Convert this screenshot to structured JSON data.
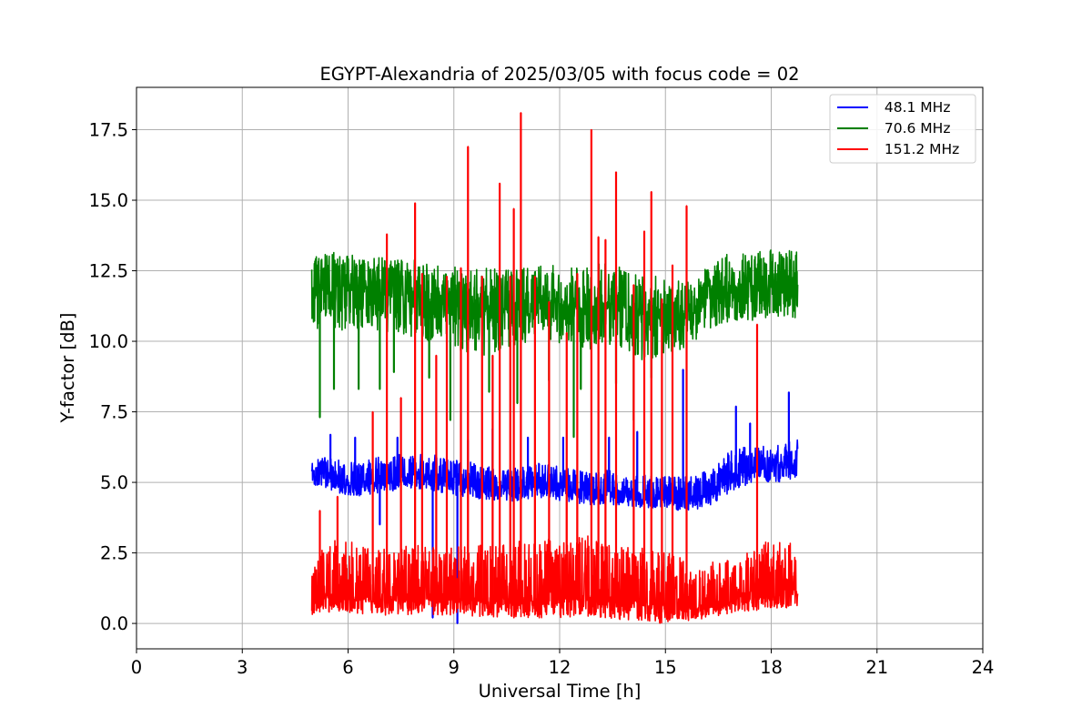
{
  "chart_data": {
    "type": "line",
    "title": "EGYPT-Alexandria of 2025/03/05 with focus code = 02",
    "xlabel": "Universal Time [h]",
    "ylabel": "Y-factor [dB]",
    "xlim": [
      0,
      24
    ],
    "ylim": [
      -0.9,
      19.0
    ],
    "xticks": [
      0,
      3,
      6,
      9,
      12,
      15,
      18,
      21,
      24
    ],
    "xtick_labels": [
      "0",
      "3",
      "6",
      "9",
      "12",
      "15",
      "18",
      "21",
      "24"
    ],
    "yticks": [
      0.0,
      2.5,
      5.0,
      7.5,
      10.0,
      12.5,
      15.0,
      17.5
    ],
    "ytick_labels": [
      "0.0",
      "2.5",
      "5.0",
      "7.5",
      "10.0",
      "12.5",
      "15.0",
      "17.5"
    ],
    "grid": true,
    "legend_position": "top-right",
    "series": [
      {
        "name": "48.1 MHz",
        "label": "  48.1 MHz",
        "color": "#0000ff",
        "x": [
          4.97,
          5.3,
          5.8,
          6.3,
          6.8,
          7.3,
          7.8,
          8.3,
          8.8,
          9.3,
          9.8,
          10.3,
          10.8,
          11.3,
          11.8,
          12.3,
          12.8,
          13.3,
          13.8,
          14.3,
          14.8,
          15.3,
          15.8,
          16.3,
          16.8,
          17.3,
          17.8,
          18.3,
          18.75
        ],
        "base": [
          5.3,
          5.2,
          5.0,
          4.9,
          5.0,
          5.1,
          5.2,
          5.2,
          5.1,
          5.0,
          4.9,
          4.8,
          4.8,
          4.9,
          4.9,
          4.8,
          4.7,
          4.7,
          4.6,
          4.5,
          4.5,
          4.4,
          4.4,
          4.6,
          5.1,
          5.4,
          5.5,
          5.6,
          5.8
        ],
        "upper": [
          5.8,
          5.9,
          5.8,
          5.7,
          5.9,
          6.0,
          6.0,
          6.0,
          5.9,
          5.8,
          5.6,
          5.5,
          5.6,
          5.7,
          5.6,
          5.5,
          5.4,
          5.5,
          5.4,
          5.3,
          5.2,
          5.2,
          5.2,
          5.5,
          6.1,
          6.3,
          6.3,
          6.4,
          6.5
        ],
        "lower": [
          4.9,
          4.8,
          4.6,
          4.5,
          4.6,
          4.7,
          4.8,
          4.7,
          4.6,
          4.5,
          4.4,
          4.3,
          4.3,
          4.4,
          4.4,
          4.3,
          4.2,
          4.2,
          4.2,
          4.1,
          4.1,
          4.0,
          4.0,
          4.2,
          4.6,
          4.9,
          5.0,
          5.0,
          5.2
        ],
        "spikes": [
          [
            5.5,
            6.7
          ],
          [
            6.2,
            6.6
          ],
          [
            6.9,
            3.5
          ],
          [
            7.4,
            6.6
          ],
          [
            8.4,
            0.2
          ],
          [
            9.1,
            0.0
          ],
          [
            9.4,
            6.5
          ],
          [
            10.1,
            6.9
          ],
          [
            11.1,
            6.6
          ],
          [
            12.1,
            6.6
          ],
          [
            13.4,
            6.6
          ],
          [
            14.2,
            6.8
          ],
          [
            15.5,
            9.0
          ],
          [
            17.0,
            7.7
          ],
          [
            17.4,
            7.1
          ],
          [
            18.5,
            8.2
          ]
        ]
      },
      {
        "name": "70.6 MHz",
        "label": "  70.6 MHz",
        "color": "#008000",
        "x": [
          4.97,
          5.3,
          5.8,
          6.3,
          6.8,
          7.3,
          7.8,
          8.3,
          8.8,
          9.3,
          9.8,
          10.3,
          10.8,
          11.3,
          11.8,
          12.3,
          12.8,
          13.3,
          13.8,
          14.3,
          14.8,
          15.3,
          15.8,
          16.3,
          16.8,
          17.3,
          17.8,
          18.3,
          18.75
        ],
        "base": [
          11.7,
          11.8,
          11.9,
          11.9,
          11.8,
          11.7,
          11.6,
          11.5,
          11.3,
          11.3,
          11.2,
          11.1,
          11.2,
          11.4,
          11.4,
          11.3,
          11.1,
          11.3,
          11.2,
          11.0,
          11.0,
          11.0,
          11.0,
          11.6,
          11.9,
          11.9,
          11.9,
          12.0,
          12.0
        ],
        "upper": [
          13.0,
          13.1,
          13.2,
          13.0,
          13.0,
          12.9,
          12.9,
          12.8,
          12.6,
          12.7,
          12.6,
          12.6,
          12.6,
          12.7,
          12.7,
          12.6,
          12.7,
          12.8,
          12.6,
          12.4,
          12.3,
          12.3,
          12.0,
          12.9,
          13.1,
          13.1,
          13.3,
          13.3,
          13.2
        ],
        "lower": [
          10.4,
          10.5,
          10.3,
          10.4,
          10.4,
          10.2,
          10.1,
          10.0,
          9.9,
          9.6,
          9.5,
          9.6,
          9.9,
          10.0,
          9.9,
          10.0,
          9.6,
          9.9,
          9.6,
          9.3,
          9.4,
          9.6,
          10.0,
          10.5,
          10.7,
          10.7,
          10.8,
          10.9,
          10.8
        ],
        "spikes": [
          [
            5.2,
            7.3
          ],
          [
            5.6,
            8.3
          ],
          [
            6.3,
            8.3
          ],
          [
            6.9,
            8.3
          ],
          [
            7.3,
            8.9
          ],
          [
            8.3,
            8.7
          ],
          [
            8.9,
            7.2
          ],
          [
            10.0,
            8.2
          ],
          [
            10.8,
            7.8
          ],
          [
            11.7,
            8.6
          ],
          [
            12.4,
            6.6
          ],
          [
            12.6,
            8.3
          ],
          [
            13.6,
            8.5
          ],
          [
            14.1,
            7.2
          ],
          [
            14.6,
            8.7
          ]
        ]
      },
      {
        "name": "151.2 MHz",
        "label": "  151.2 MHz",
        "color": "#ff0000",
        "x": [
          4.97,
          5.3,
          5.8,
          6.3,
          6.8,
          7.3,
          7.8,
          8.3,
          8.8,
          9.3,
          9.8,
          10.3,
          10.8,
          11.3,
          11.8,
          12.3,
          12.8,
          13.3,
          13.8,
          14.3,
          14.8,
          15.3,
          15.8,
          16.3,
          16.8,
          17.3,
          17.8,
          18.3,
          18.75
        ],
        "base": [
          0.8,
          1.0,
          1.0,
          0.9,
          0.9,
          0.9,
          0.9,
          0.9,
          0.9,
          0.8,
          0.8,
          0.8,
          0.8,
          0.8,
          0.8,
          0.9,
          0.8,
          0.8,
          0.7,
          0.7,
          0.6,
          0.6,
          0.4,
          0.6,
          0.8,
          1.0,
          1.1,
          1.1,
          1.2
        ],
        "upper": [
          2.4,
          2.8,
          3.0,
          2.8,
          2.6,
          2.7,
          2.8,
          2.9,
          3.0,
          2.9,
          2.8,
          2.8,
          2.9,
          3.0,
          3.0,
          3.1,
          3.1,
          2.8,
          2.8,
          2.7,
          2.6,
          2.5,
          1.8,
          2.2,
          2.3,
          2.6,
          3.0,
          2.9,
          2.8
        ],
        "lower": [
          0.3,
          0.4,
          0.4,
          0.3,
          0.3,
          0.3,
          0.3,
          0.3,
          0.3,
          0.3,
          0.2,
          0.2,
          0.2,
          0.2,
          0.2,
          0.2,
          0.2,
          0.2,
          0.1,
          0.1,
          0.0,
          0.1,
          0.1,
          0.2,
          0.3,
          0.4,
          0.5,
          0.5,
          0.6
        ],
        "spikes": [
          [
            5.2,
            4.0
          ],
          [
            5.7,
            4.5
          ],
          [
            6.7,
            7.5
          ],
          [
            7.1,
            13.8
          ],
          [
            7.5,
            8.0
          ],
          [
            7.9,
            14.9
          ],
          [
            8.1,
            12.4
          ],
          [
            8.5,
            9.5
          ],
          [
            8.8,
            12.3
          ],
          [
            9.2,
            12.6
          ],
          [
            9.4,
            16.9
          ],
          [
            9.8,
            12.3
          ],
          [
            10.1,
            9.5
          ],
          [
            10.3,
            15.6
          ],
          [
            10.6,
            12.3
          ],
          [
            10.7,
            14.7
          ],
          [
            10.9,
            18.1
          ],
          [
            11.3,
            12.3
          ],
          [
            11.7,
            11.4
          ],
          [
            12.2,
            10.3
          ],
          [
            12.5,
            12.4
          ],
          [
            12.9,
            17.5
          ],
          [
            13.1,
            13.7
          ],
          [
            13.3,
            13.6
          ],
          [
            13.6,
            16.0
          ],
          [
            14.1,
            12.0
          ],
          [
            14.4,
            13.9
          ],
          [
            14.6,
            15.3
          ],
          [
            14.9,
            11.5
          ],
          [
            15.2,
            12.7
          ],
          [
            15.6,
            14.8
          ],
          [
            17.6,
            10.6
          ]
        ]
      }
    ]
  }
}
